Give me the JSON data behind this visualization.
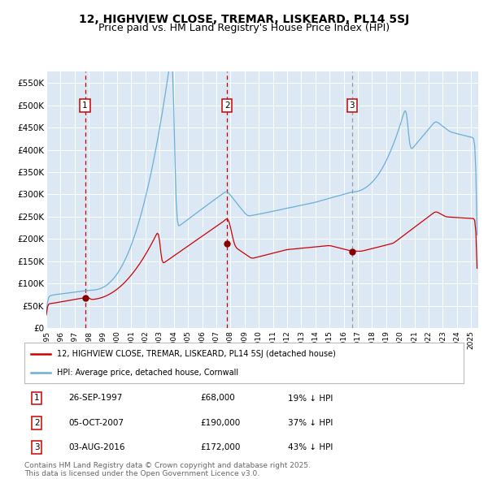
{
  "title": "12, HIGHVIEW CLOSE, TREMAR, LISKEARD, PL14 5SJ",
  "subtitle": "Price paid vs. HM Land Registry's House Price Index (HPI)",
  "title_fontsize": 10,
  "subtitle_fontsize": 9,
  "bg_color": "#dce9f5",
  "grid_color": "#ffffff",
  "ylim": [
    0,
    575000
  ],
  "yticks": [
    0,
    50000,
    100000,
    150000,
    200000,
    250000,
    300000,
    350000,
    400000,
    450000,
    500000,
    550000
  ],
  "ytick_labels": [
    "£0",
    "£50K",
    "£100K",
    "£150K",
    "£200K",
    "£250K",
    "£300K",
    "£350K",
    "£400K",
    "£450K",
    "£500K",
    "£550K"
  ],
  "sale_color": "#cc0000",
  "hpi_color": "#6baed6",
  "sale_marker_color": "#880000",
  "vline_sale_color": "#cc0000",
  "vline_3_color": "#999999",
  "sale_prices": [
    68000,
    190000,
    172000
  ],
  "annotations": [
    {
      "num": 1,
      "date_label": "26-SEP-1997",
      "price": "£68,000",
      "pct": "19% ↓ HPI",
      "x_year": 1997.73
    },
    {
      "num": 2,
      "date_label": "05-OCT-2007",
      "price": "£190,000",
      "pct": "37% ↓ HPI",
      "x_year": 2007.76
    },
    {
      "num": 3,
      "date_label": "03-AUG-2016",
      "price": "£172,000",
      "pct": "43% ↓ HPI",
      "x_year": 2016.59
    }
  ],
  "legend_sale_label": "12, HIGHVIEW CLOSE, TREMAR, LISKEARD, PL14 5SJ (detached house)",
  "legend_hpi_label": "HPI: Average price, detached house, Cornwall",
  "footer": "Contains HM Land Registry data © Crown copyright and database right 2025.\nThis data is licensed under the Open Government Licence v3.0.",
  "footer_fontsize": 6.5,
  "xmin": 1995.0,
  "xmax": 2025.5
}
